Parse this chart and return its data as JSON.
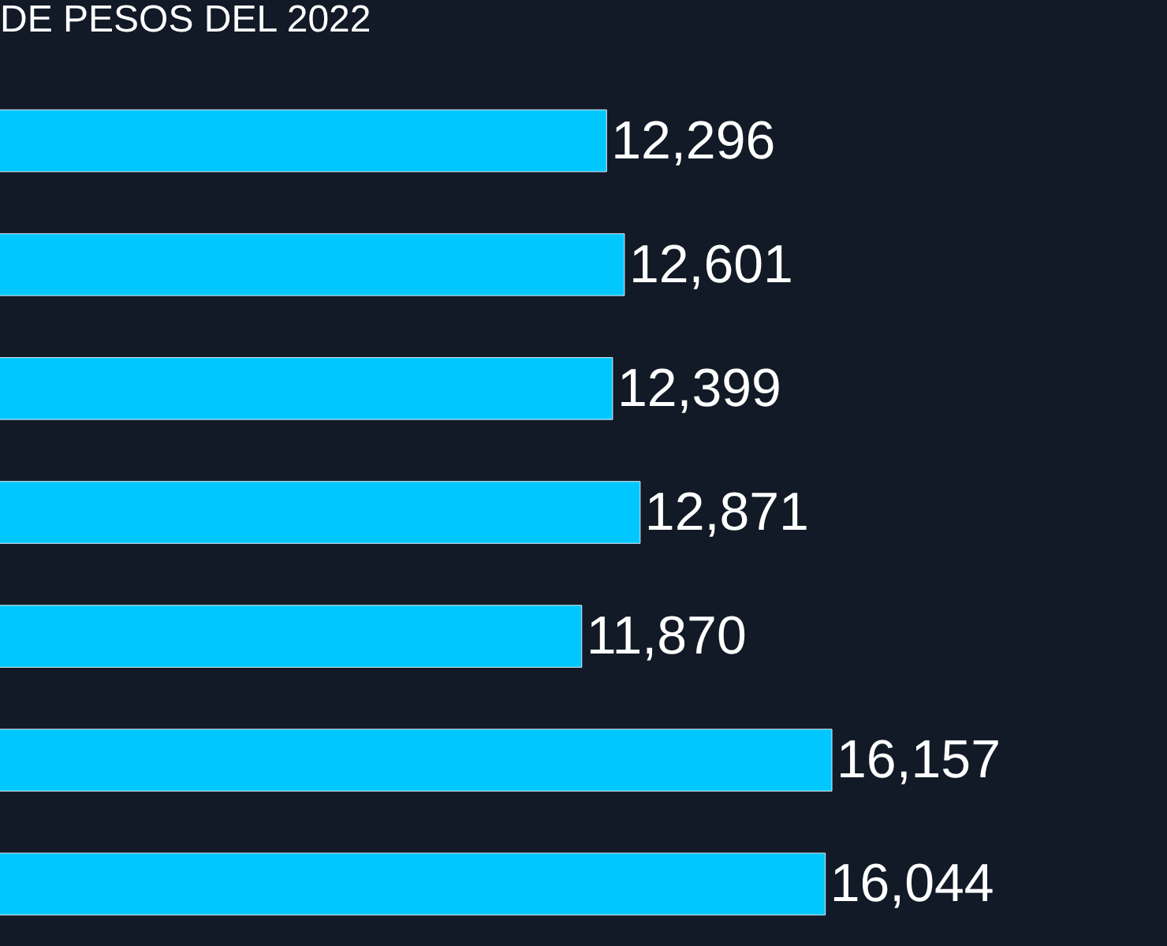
{
  "chart_data": {
    "type": "bar",
    "orientation": "horizontal",
    "title": "DE PESOS DEL 2022",
    "categories": [
      null,
      null,
      null,
      null,
      null,
      null,
      null
    ],
    "values": [
      12296,
      12601,
      12399,
      12871,
      11870,
      16157,
      16044
    ],
    "value_labels": [
      "12,296",
      "12,601",
      "12,399",
      "12,871",
      "11,870",
      "16,157",
      "16,044"
    ],
    "color": "#00c8ff",
    "xlim": [
      1900,
      21900
    ],
    "grid": false,
    "legend": false
  }
}
